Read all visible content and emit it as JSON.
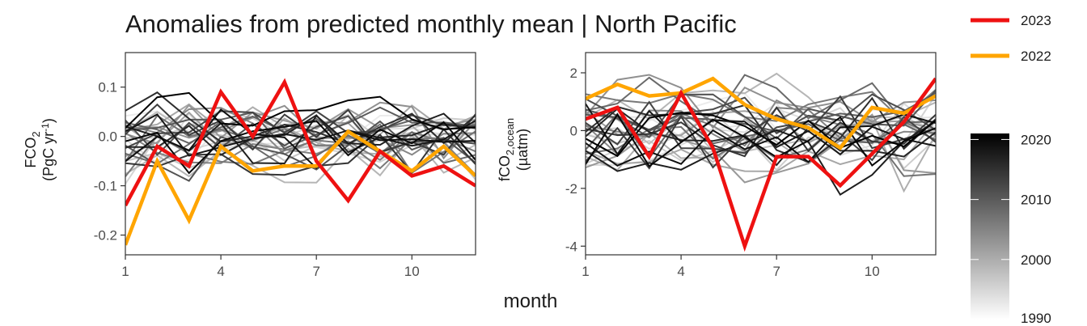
{
  "title": "Anomalies from predicted monthly mean | North Pacific",
  "xlabel": "month",
  "colors": {
    "highlight_2023": "#ee1111",
    "highlight_2022": "#ffa500"
  },
  "legend": {
    "lines": [
      {
        "label": "2023",
        "color": "#ee1111"
      },
      {
        "label": "2022",
        "color": "#ffa500"
      }
    ],
    "colorbar": {
      "ticks": [
        "2020",
        "2010",
        "2000",
        "1990"
      ],
      "values": [
        2020,
        2010,
        2000,
        1990
      ],
      "range": [
        1990,
        2021
      ]
    }
  },
  "chart_data": [
    {
      "type": "line",
      "panel": "flux",
      "ylabel_main": "FCO",
      "ylabel_sub": "2",
      "yunit_prefix": "(PgC yr",
      "yunit_sup": "-1",
      "yunit_suffix": ")",
      "xlim": [
        1,
        12
      ],
      "ylim": [
        -0.24,
        0.17
      ],
      "x_ticks": [
        1,
        4,
        7,
        10
      ],
      "x_tick_labels": [
        "1",
        "4",
        "7",
        "10"
      ],
      "y_ticks": [
        0.1,
        0.0,
        -0.1,
        -0.2
      ],
      "y_tick_labels": [
        "0.1",
        "0.0",
        "-0.1",
        "-0.2"
      ],
      "grid": false,
      "x": [
        1,
        2,
        3,
        4,
        5,
        6,
        7,
        8,
        9,
        10,
        11,
        12
      ],
      "background_series_years": "1990-2021",
      "background_amplitude": 0.05,
      "highlight_series": [
        {
          "name": "2022",
          "color": "#ffa500",
          "values": [
            -0.22,
            -0.05,
            -0.17,
            -0.02,
            -0.07,
            -0.06,
            -0.06,
            0.01,
            -0.03,
            -0.07,
            -0.02,
            -0.08
          ]
        },
        {
          "name": "2023",
          "color": "#ee1111",
          "values": [
            -0.14,
            -0.02,
            -0.06,
            0.09,
            0.0,
            0.11,
            -0.05,
            -0.13,
            -0.03,
            -0.08,
            -0.06,
            -0.1
          ]
        }
      ]
    },
    {
      "type": "line",
      "panel": "fco2",
      "ylabel_main": "fCO",
      "ylabel_sub": "2,ocean",
      "yunit_prefix": "(µatm)",
      "yunit_sup": "",
      "yunit_suffix": "",
      "xlim": [
        1,
        12
      ],
      "ylim": [
        -4.3,
        2.7
      ],
      "x_ticks": [
        1,
        4,
        7,
        10
      ],
      "x_tick_labels": [
        "1",
        "4",
        "7",
        "10"
      ],
      "y_ticks": [
        2,
        0,
        -2,
        -4
      ],
      "y_tick_labels": [
        "2",
        "0",
        "-2",
        "-4"
      ],
      "grid": false,
      "x": [
        1,
        2,
        3,
        4,
        5,
        6,
        7,
        8,
        9,
        10,
        11,
        12
      ],
      "background_series_years": "1990-2021",
      "background_amplitude": 1.1,
      "highlight_series": [
        {
          "name": "2022",
          "color": "#ffa500",
          "values": [
            1.1,
            1.6,
            1.2,
            1.3,
            1.8,
            0.9,
            0.4,
            0.1,
            -0.6,
            0.8,
            0.6,
            1.2
          ]
        },
        {
          "name": "2023",
          "color": "#ee1111",
          "values": [
            0.4,
            0.8,
            -0.9,
            1.3,
            -0.6,
            -4.0,
            -0.9,
            -0.9,
            -1.9,
            -0.8,
            0.3,
            1.8
          ]
        }
      ]
    }
  ]
}
